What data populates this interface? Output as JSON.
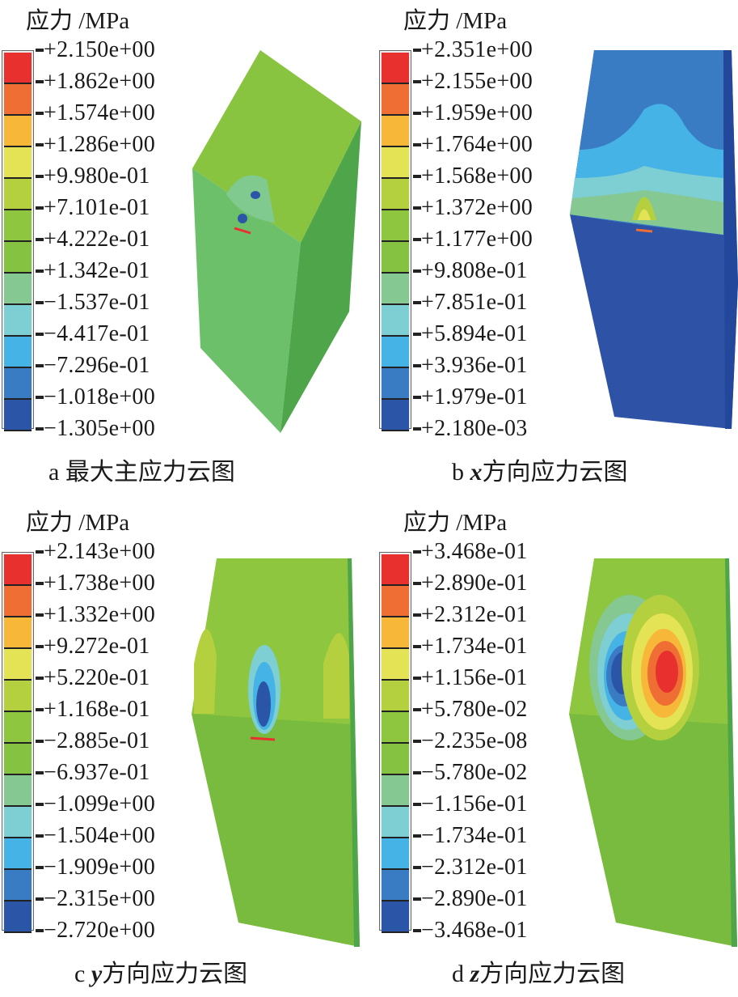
{
  "unit_label": "应力 /MPa",
  "legend_colors": [
    "#e8312f",
    "#ee6e33",
    "#f7b83a",
    "#e3e355",
    "#b4d03e",
    "#8ec63f",
    "#86c242",
    "#85c892",
    "#7ecfd3",
    "#45b3e5",
    "#3a7cc3",
    "#2b56a8"
  ],
  "panels": [
    {
      "id": "a",
      "caption_letter": "a",
      "caption_var": "",
      "caption_text": "最大主应力云图",
      "levels": [
        "+2.150e+00",
        "+1.862e+00",
        "+1.574e+00",
        "+1.286e+00",
        "+9.980e-01",
        "+7.101e-01",
        "+4.222e-01",
        "+1.342e-01",
        "−1.537e-01",
        "−4.417e-01",
        "−7.296e-01",
        "−1.018e+00",
        "−1.305e+00"
      ]
    },
    {
      "id": "b",
      "caption_letter": "b",
      "caption_var": "x",
      "caption_text": "方向应力云图",
      "levels": [
        "+2.351e+00",
        "+2.155e+00",
        "+1.959e+00",
        "+1.764e+00",
        "+1.568e+00",
        "+1.372e+00",
        "+1.177e+00",
        "+9.808e-01",
        "+7.851e-01",
        "+5.894e-01",
        "+3.936e-01",
        "+1.979e-01",
        "+2.180e-03"
      ]
    },
    {
      "id": "c",
      "caption_letter": "c",
      "caption_var": "y",
      "caption_text": "方向应力云图",
      "levels": [
        "+2.143e+00",
        "+1.738e+00",
        "+1.332e+00",
        "+9.272e-01",
        "+5.220e-01",
        "+1.168e-01",
        "−2.885e-01",
        "−6.937e-01",
        "−1.099e+00",
        "−1.504e+00",
        "−1.909e+00",
        "−2.315e+00",
        "−2.720e+00"
      ]
    },
    {
      "id": "d",
      "caption_letter": "d",
      "caption_var": "z",
      "caption_text": "方向应力云图",
      "levels": [
        "+3.468e-01",
        "+2.890e-01",
        "+2.312e-01",
        "+1.734e-01",
        "+1.156e-01",
        "+5.780e-02",
        "−2.235e-08",
        "−5.780e-02",
        "−1.156e-01",
        "−1.734e-01",
        "−2.312e-01",
        "−2.890e-01",
        "−3.468e-01"
      ]
    }
  ]
}
